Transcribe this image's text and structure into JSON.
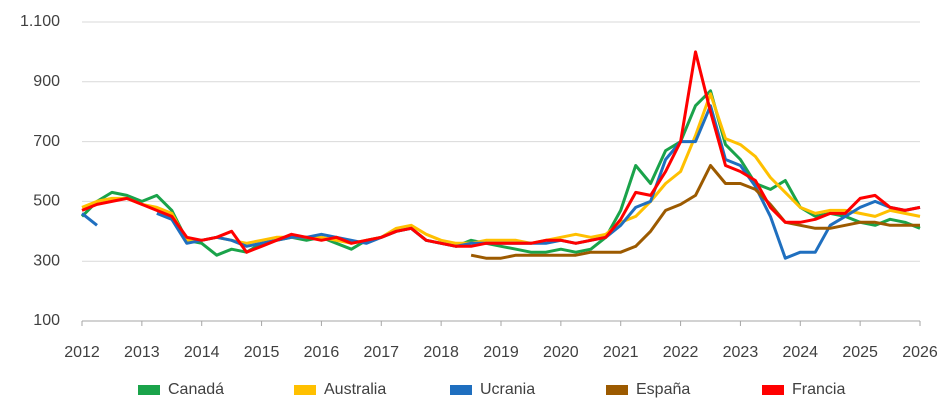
{
  "chart_data": {
    "type": "line",
    "x": [
      2012,
      2012.25,
      2012.5,
      2012.75,
      2013,
      2013.25,
      2013.5,
      2013.75,
      2014,
      2014.25,
      2014.5,
      2014.75,
      2015,
      2015.25,
      2015.5,
      2015.75,
      2016,
      2016.25,
      2016.5,
      2016.75,
      2017,
      2017.25,
      2017.5,
      2017.75,
      2018,
      2018.25,
      2018.5,
      2018.75,
      2019,
      2019.25,
      2019.5,
      2019.75,
      2020,
      2020.25,
      2020.5,
      2020.75,
      2021,
      2021.25,
      2021.5,
      2021.75,
      2022,
      2022.25,
      2022.5,
      2022.75,
      2023,
      2023.25,
      2023.5,
      2023.75,
      2024,
      2024.25,
      2024.5,
      2024.75,
      2025,
      2025.25,
      2025.5,
      2025.75,
      2026
    ],
    "series": [
      {
        "name": "Canadá",
        "color": "#1aa34a",
        "values": [
          450,
          500,
          530,
          520,
          500,
          520,
          470,
          370,
          360,
          320,
          340,
          330,
          360,
          370,
          380,
          370,
          380,
          360,
          340,
          370,
          380,
          400,
          410,
          370,
          360,
          350,
          370,
          360,
          350,
          340,
          330,
          330,
          340,
          330,
          340,
          380,
          470,
          620,
          560,
          670,
          700,
          820,
          870,
          690,
          640,
          560,
          540,
          570,
          480,
          450,
          460,
          450,
          430,
          420,
          440,
          430,
          410
        ]
      },
      {
        "name": "Australia",
        "color": "#ffc000",
        "values": [
          480,
          500,
          510,
          510,
          490,
          480,
          460,
          370,
          370,
          380,
          370,
          360,
          370,
          380,
          380,
          380,
          380,
          370,
          360,
          370,
          380,
          410,
          420,
          390,
          370,
          360,
          360,
          370,
          370,
          370,
          360,
          370,
          380,
          390,
          380,
          390,
          430,
          450,
          500,
          560,
          600,
          720,
          860,
          710,
          690,
          650,
          580,
          530,
          480,
          460,
          470,
          470,
          460,
          450,
          470,
          460,
          450
        ]
      },
      {
        "name": "Ucrania",
        "color": "#1f6fbf",
        "values": [
          460,
          420,
          null,
          null,
          null,
          460,
          440,
          360,
          370,
          380,
          370,
          350,
          360,
          370,
          380,
          380,
          390,
          380,
          370,
          360,
          380,
          400,
          410,
          370,
          360,
          350,
          360,
          360,
          360,
          360,
          360,
          360,
          370,
          360,
          370,
          380,
          420,
          480,
          500,
          640,
          700,
          700,
          820,
          640,
          620,
          550,
          450,
          310,
          330,
          330,
          420,
          450,
          480,
          500,
          480,
          470,
          480
        ]
      },
      {
        "name": "España",
        "color": "#9c5a00",
        "values": [
          null,
          null,
          null,
          null,
          null,
          null,
          null,
          null,
          null,
          null,
          null,
          null,
          null,
          null,
          null,
          null,
          null,
          null,
          null,
          null,
          null,
          null,
          null,
          null,
          null,
          null,
          320,
          310,
          310,
          320,
          320,
          320,
          320,
          320,
          330,
          330,
          330,
          350,
          400,
          470,
          490,
          520,
          620,
          560,
          560,
          540,
          490,
          430,
          420,
          410,
          410,
          420,
          430,
          430,
          420,
          420,
          420
        ]
      },
      {
        "name": "Francia",
        "color": "#ff0000",
        "values": [
          470,
          490,
          500,
          510,
          490,
          470,
          450,
          380,
          370,
          380,
          400,
          330,
          350,
          370,
          390,
          380,
          370,
          380,
          360,
          370,
          380,
          400,
          410,
          370,
          360,
          350,
          350,
          360,
          360,
          360,
          360,
          370,
          370,
          360,
          370,
          380,
          440,
          530,
          520,
          600,
          700,
          1000,
          800,
          620,
          600,
          570,
          480,
          430,
          430,
          440,
          460,
          460,
          510,
          520,
          480,
          470,
          480
        ]
      }
    ],
    "xlim": [
      2012,
      2026
    ],
    "xticks": [
      2012,
      2013,
      2014,
      2015,
      2016,
      2017,
      2018,
      2019,
      2020,
      2021,
      2022,
      2023,
      2024,
      2025,
      2026
    ],
    "ylim": [
      100,
      1100
    ],
    "yticks": [
      100,
      300,
      500,
      700,
      900,
      {
        "value": 1100,
        "label": "1.100"
      }
    ],
    "grid": true,
    "legend": "bottom"
  }
}
